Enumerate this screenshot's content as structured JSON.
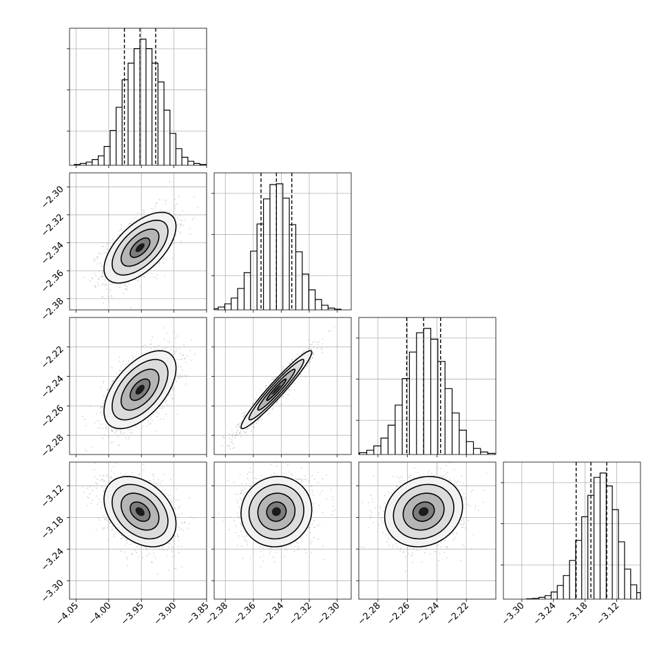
{
  "chart_data": {
    "type": "corner",
    "grid": true,
    "colors": {
      "line": "#000000",
      "points": "#9e9e9e",
      "grid": "#b0b0b0"
    },
    "parameters": [
      {
        "center": -3.952,
        "q_lo": -3.976,
        "q_hi": -3.928,
        "range": [
          -4.06,
          -3.85
        ],
        "ticks": [
          -4.05,
          -4.0,
          -3.95,
          -3.9,
          -3.85
        ],
        "tick_labels": [
          "−4.05",
          "−4.00",
          "−3.95",
          "−3.90",
          "−3.85"
        ]
      },
      {
        "center": -2.3435,
        "q_lo": -2.3545,
        "q_hi": -2.3325,
        "range": [
          -2.388,
          -2.29
        ],
        "ticks": [
          -2.38,
          -2.36,
          -2.34,
          -2.32,
          -2.3
        ],
        "tick_labels": [
          "−2.38",
          "−2.36",
          "−2.34",
          "−2.32",
          "−2.30"
        ]
      },
      {
        "center": -2.249,
        "q_lo": -2.2605,
        "q_hi": -2.2375,
        "range": [
          -2.293,
          -2.2
        ],
        "ticks": [
          -2.28,
          -2.26,
          -2.24,
          -2.22
        ],
        "tick_labels": [
          "−2.28",
          "−2.26",
          "−2.24",
          "−2.22"
        ]
      },
      {
        "center": -3.169,
        "q_lo": -3.197,
        "q_hi": -3.139,
        "range": [
          -3.335,
          -3.075
        ],
        "ticks": [
          -3.3,
          -3.24,
          -3.18,
          -3.12
        ],
        "tick_labels": [
          "−3.30",
          "−3.24",
          "−3.18",
          "−3.12"
        ]
      }
    ],
    "histograms": [
      [
        2,
        5,
        9,
        16,
        26,
        52,
        96,
        160,
        236,
        282,
        322,
        348,
        322,
        282,
        230,
        152,
        88,
        46,
        22,
        11,
        5,
        2
      ],
      [
        3,
        8,
        17,
        33,
        60,
        104,
        164,
        240,
        310,
        350,
        352,
        312,
        238,
        162,
        100,
        56,
        29,
        13,
        5,
        2
      ],
      [
        2,
        5,
        12,
        24,
        46,
        82,
        138,
        212,
        286,
        340,
        352,
        322,
        260,
        184,
        116,
        68,
        36,
        17,
        7,
        3
      ],
      [
        1,
        2,
        5,
        10,
        20,
        38,
        66,
        108,
        164,
        230,
        290,
        340,
        352,
        316,
        250,
        160,
        84,
        40,
        18,
        7,
        3
      ]
    ],
    "correlations": {
      "1-0": 0.6,
      "2-0": 0.55,
      "2-1": 0.96,
      "3-0": -0.35,
      "3-1": 0.05,
      "3-2": 0.15
    }
  }
}
